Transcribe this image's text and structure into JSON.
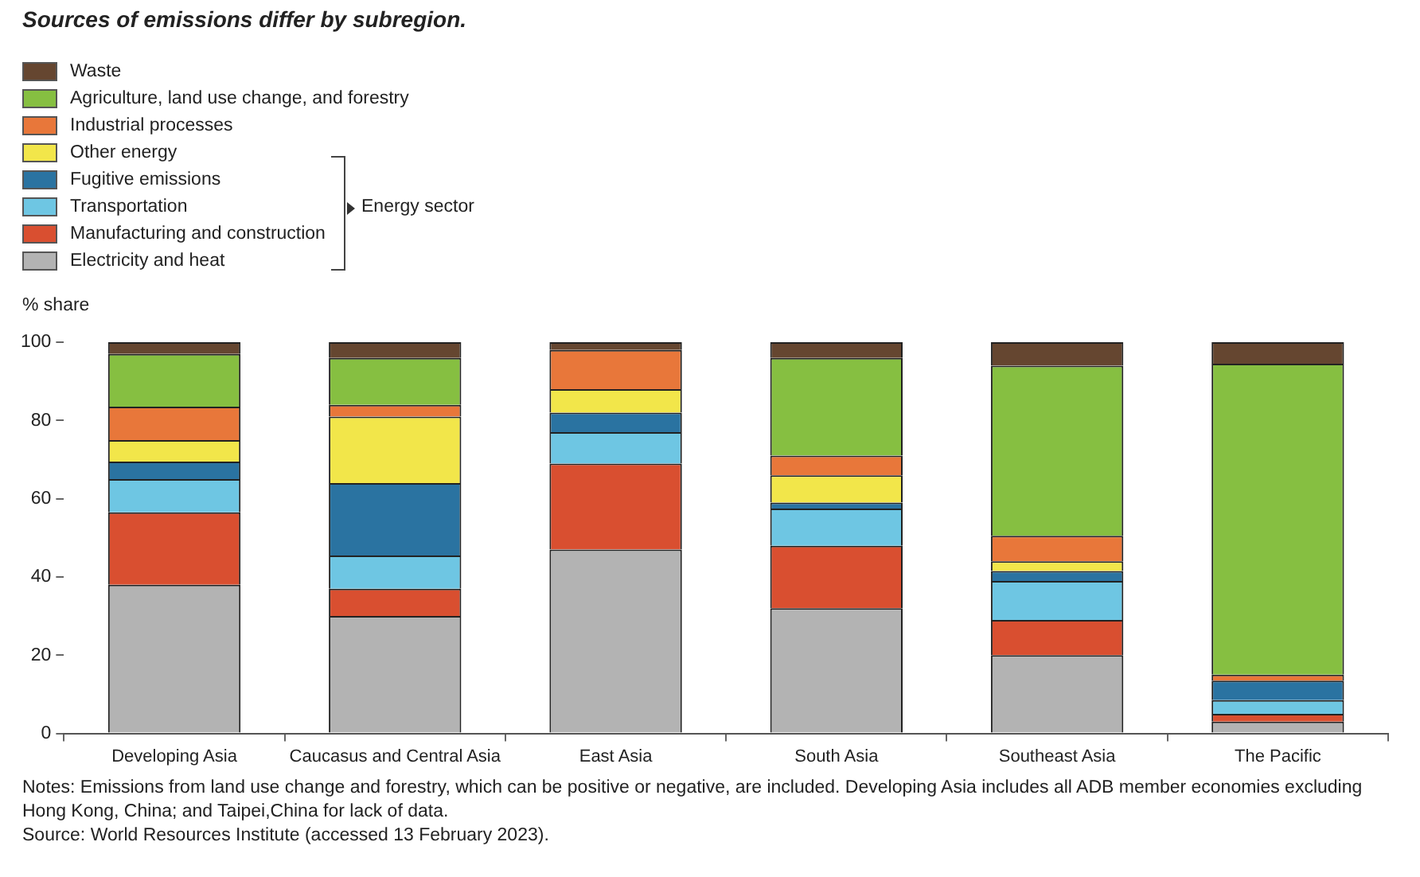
{
  "chart_data": {
    "type": "bar",
    "stacked": true,
    "title": "Sources of emissions differ by subregion.",
    "ylabel": "% share",
    "legend_title": "Energy sector",
    "categories": [
      "Developing Asia",
      "Caucasus and Central Asia",
      "East Asia",
      "South Asia",
      "Southeast Asia",
      "The Pacific"
    ],
    "series": [
      {
        "name": "Electricity and heat",
        "color": "#b3b3b3",
        "values": [
          38,
          30,
          47,
          32,
          20,
          3
        ]
      },
      {
        "name": "Manufacturing and construction",
        "color": "#d94f30",
        "values": [
          18.5,
          7,
          22,
          16,
          9,
          2
        ]
      },
      {
        "name": "Transportation",
        "color": "#6ec6e3",
        "values": [
          8.5,
          8.5,
          8,
          9.5,
          10,
          3.5
        ]
      },
      {
        "name": "Fugitive emissions",
        "color": "#2a73a1",
        "values": [
          4.5,
          18.5,
          5,
          1.5,
          2.5,
          5
        ]
      },
      {
        "name": "Other energy",
        "color": "#f2e64a",
        "values": [
          5.5,
          17,
          6,
          7,
          2.5,
          0
        ]
      },
      {
        "name": "Industrial processes",
        "color": "#e8773a",
        "values": [
          8.5,
          3,
          10,
          5,
          6.5,
          1.5
        ]
      },
      {
        "name": "Agriculture, land use change, and forestry",
        "color": "#86bf41",
        "values": [
          13.5,
          12,
          0,
          25,
          43.5,
          79.5
        ]
      },
      {
        "name": "Waste",
        "color": "#654630",
        "values": [
          3,
          4,
          2,
          4,
          6,
          5.5
        ]
      }
    ],
    "ylim": [
      0,
      100
    ],
    "yticks": [
      0,
      20,
      40,
      60,
      80,
      100
    ],
    "grid": false,
    "legend": "top left",
    "annotations": [
      "Notes: Emissions from land use change and forestry, which can be positive or negative, are included. Developing Asia includes all ADB member economies excluding Hong Kong, China; and Taipei,China for lack of data.",
      "Source: World Resources Institute (accessed 13 February 2023)."
    ]
  }
}
